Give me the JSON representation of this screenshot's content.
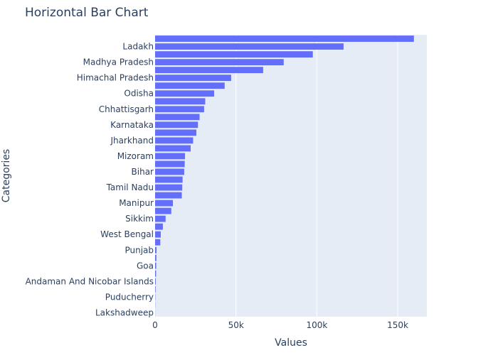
{
  "chart_data": {
    "type": "bar",
    "orientation": "horizontal",
    "title": "Horizontal Bar Chart",
    "xlabel": "Values",
    "ylabel": "Categories",
    "xlim": [
      0,
      168000
    ],
    "x_ticks": [
      0,
      50000,
      100000,
      150000
    ],
    "x_tick_labels": [
      "0",
      "50k",
      "100k",
      "150k"
    ],
    "grid": true,
    "bar_color": "#636efa",
    "plot_bg": "#e5ecf6",
    "categories": [
      "",
      "Ladakh",
      "",
      "Madhya Pradesh",
      "",
      "Himachal Pradesh",
      "",
      "Odisha",
      "",
      "Chhattisgarh",
      "",
      "Karnataka",
      "",
      "Jharkhand",
      "",
      "Mizoram",
      "",
      "Bihar",
      "",
      "Tamil Nadu",
      "",
      "Manipur",
      "",
      "Sikkim",
      "",
      "West Bengal",
      "",
      "Punjab",
      "",
      "Goa",
      "",
      "Andaman And Nicobar Islands",
      "",
      "Puducherry",
      "",
      "Lakshadweep"
    ],
    "values": [
      160000,
      116500,
      97500,
      79500,
      66800,
      47000,
      43000,
      36500,
      31000,
      30300,
      27500,
      26500,
      25500,
      23500,
      22000,
      18500,
      18300,
      18000,
      17000,
      16800,
      16500,
      11000,
      10000,
      6500,
      4800,
      3500,
      3200,
      900,
      800,
      700,
      600,
      400,
      300,
      150,
      100,
      50
    ]
  }
}
